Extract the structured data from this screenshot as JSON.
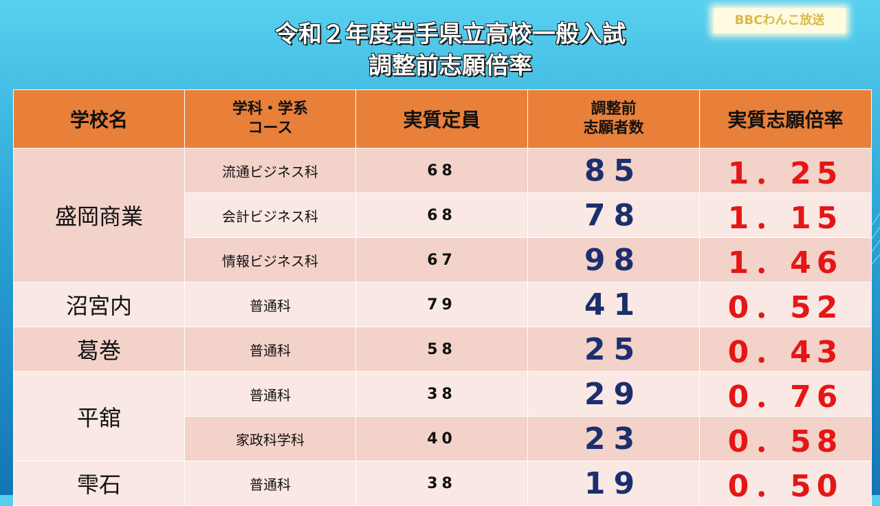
{
  "watermark": "BBCわんこ放送",
  "title": {
    "line1": "令和２年度岩手県立高校一般入試",
    "line2": "調整前志願倍率"
  },
  "table": {
    "headers": {
      "school": "学校名",
      "dept_line1": "学科・学系",
      "dept_line2": "コース",
      "capacity": "実質定員",
      "applicants_line1": "調整前",
      "applicants_line2": "志願者数",
      "ratio": "実質志願倍率"
    },
    "schools": [
      {
        "name": "盛岡商業",
        "rows": [
          {
            "dept": "流通ビジネス科",
            "capacity": "68",
            "applicants": "85",
            "ratio": "1．25"
          },
          {
            "dept": "会計ビジネス科",
            "capacity": "68",
            "applicants": "78",
            "ratio": "1．15"
          },
          {
            "dept": "情報ビジネス科",
            "capacity": "67",
            "applicants": "98",
            "ratio": "1．46"
          }
        ]
      },
      {
        "name": "沼宮内",
        "rows": [
          {
            "dept": "普通科",
            "capacity": "79",
            "applicants": "41",
            "ratio": "0．52"
          }
        ]
      },
      {
        "name": "葛巻",
        "rows": [
          {
            "dept": "普通科",
            "capacity": "58",
            "applicants": "25",
            "ratio": "0．43"
          }
        ]
      },
      {
        "name": "平舘",
        "rows": [
          {
            "dept": "普通科",
            "capacity": "38",
            "applicants": "29",
            "ratio": "0．76"
          },
          {
            "dept": "家政科学科",
            "capacity": "40",
            "applicants": "23",
            "ratio": "0．58"
          }
        ]
      },
      {
        "name": "雫石",
        "rows": [
          {
            "dept": "普通科",
            "capacity": "38",
            "applicants": "19",
            "ratio": "0．50"
          }
        ]
      }
    ]
  }
}
